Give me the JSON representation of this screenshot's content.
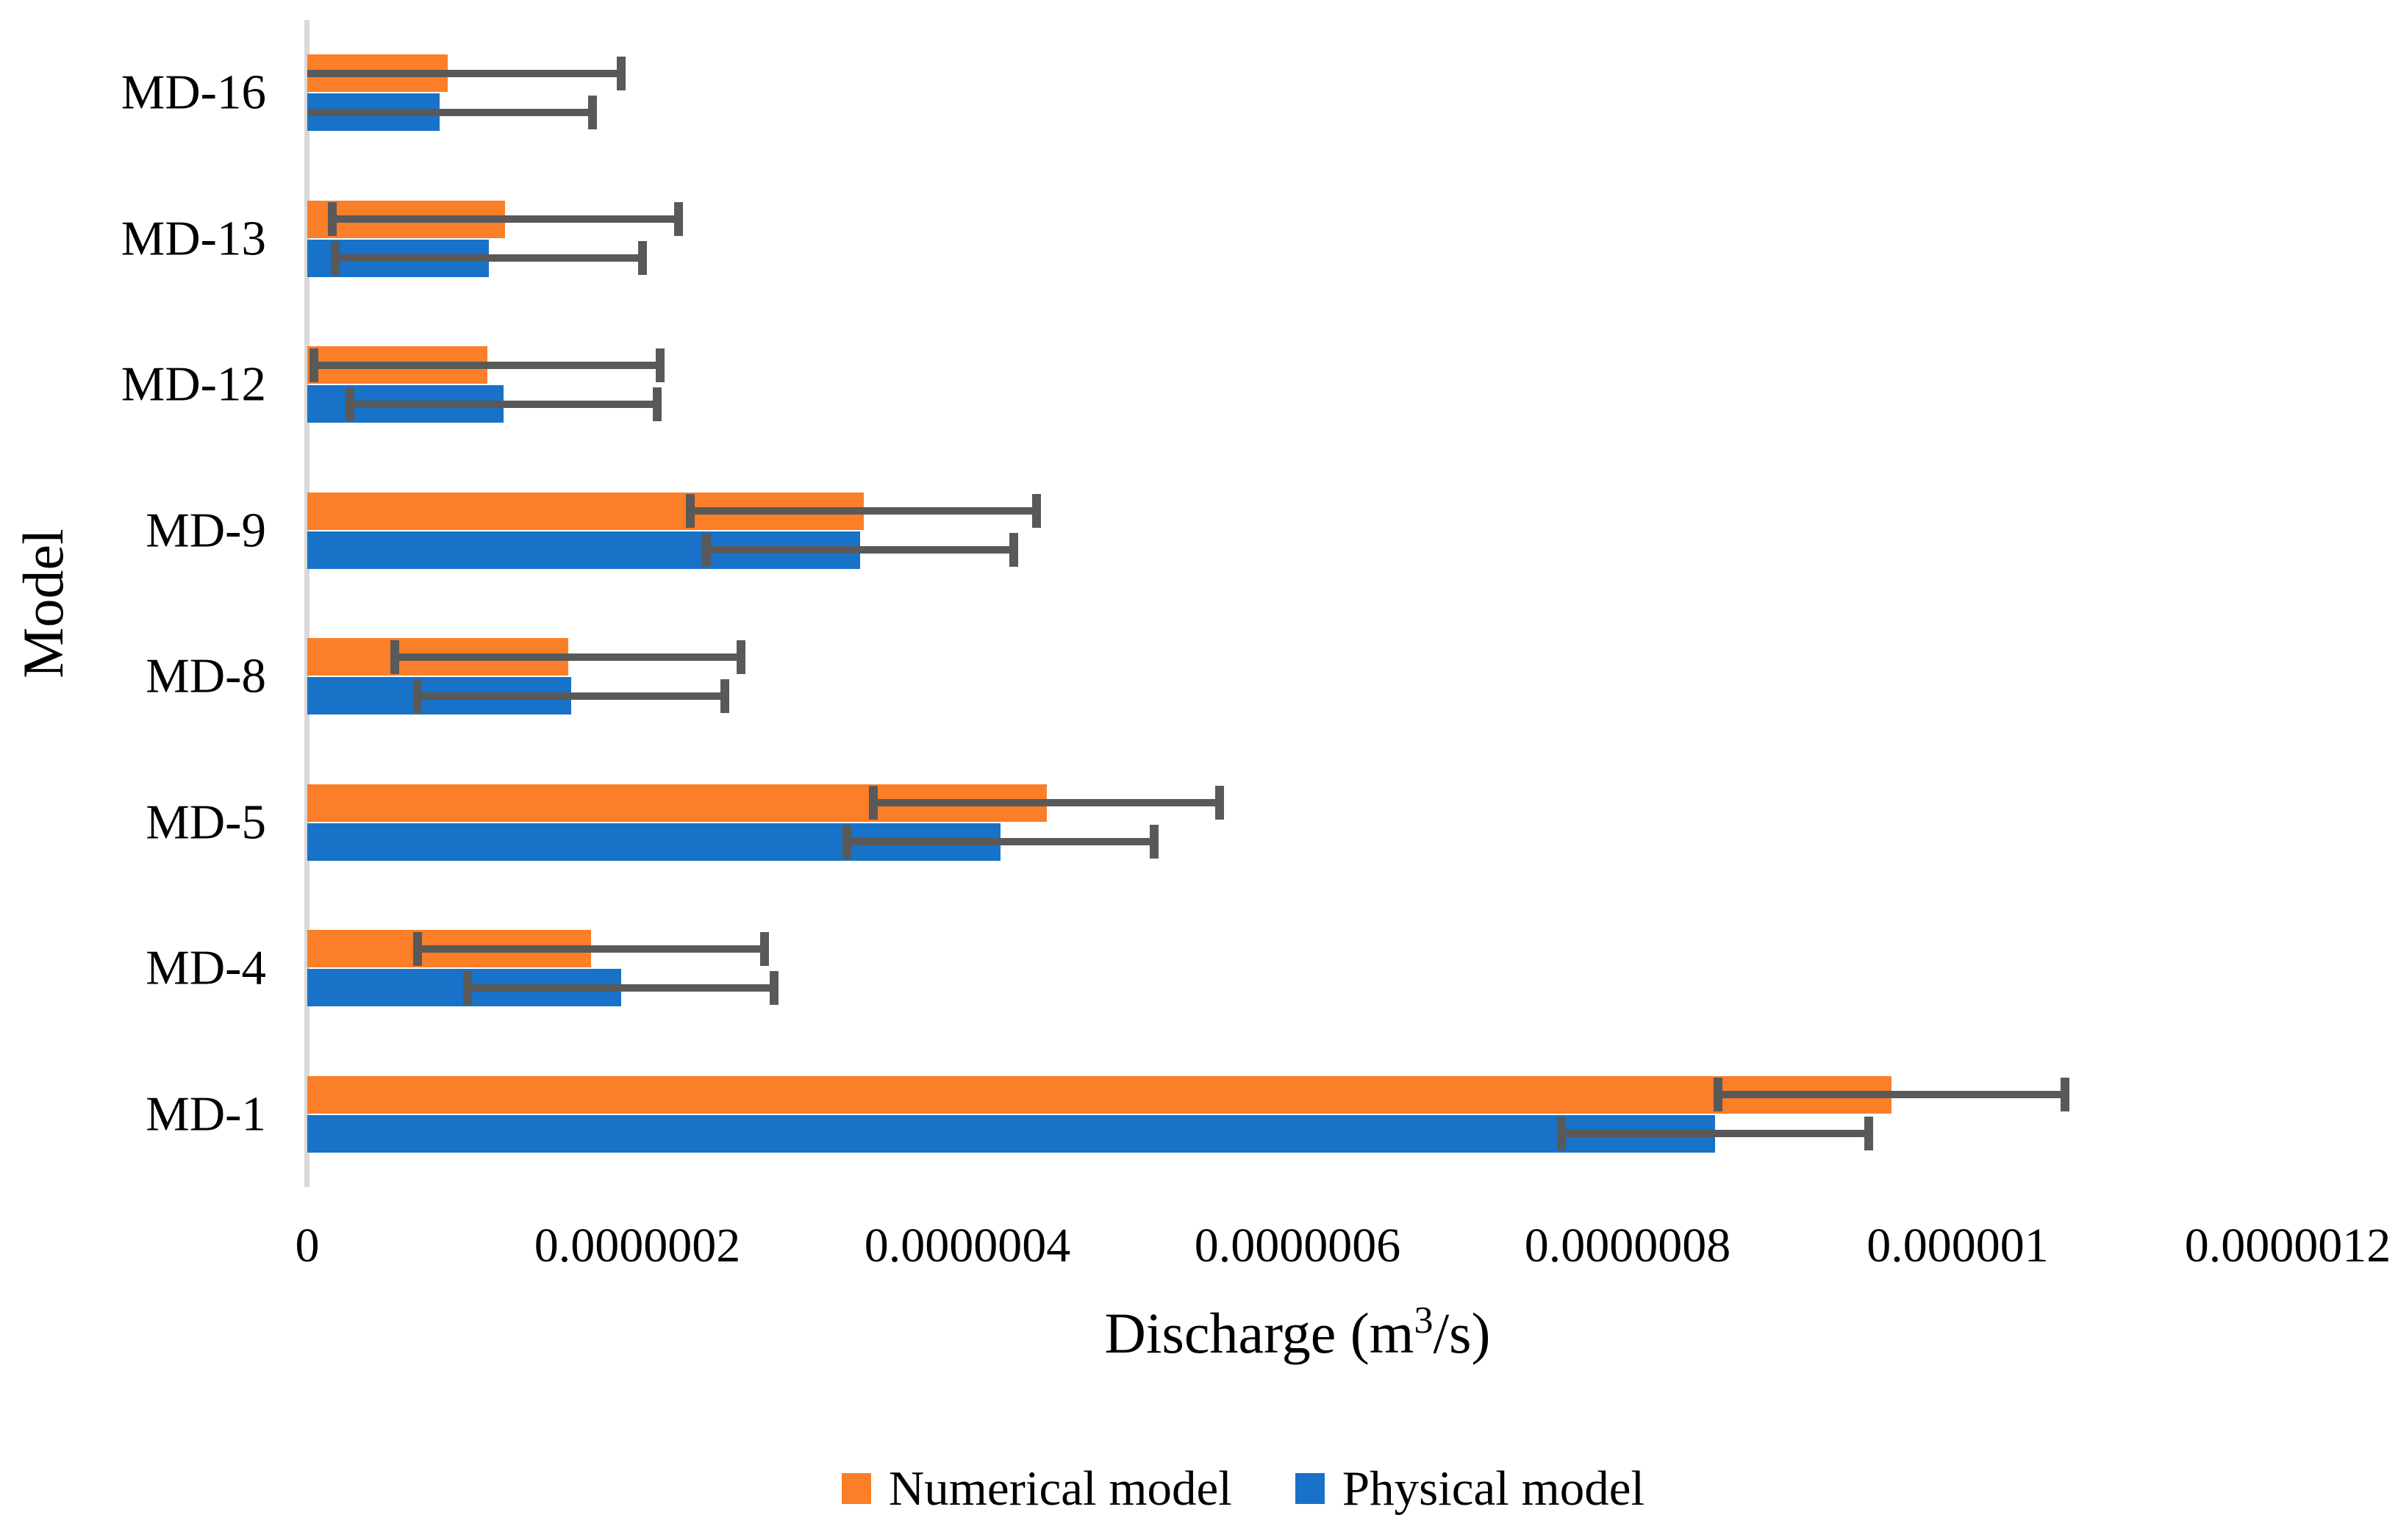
{
  "chart_data": {
    "type": "bar",
    "orientation": "horizontal",
    "xlabel": "Discharge (m³/s)",
    "xlabel_parts": {
      "pre": "Discharge (m",
      "sup": "3",
      "post": "/s)"
    },
    "ylabel": "Model",
    "categories_top_to_bottom": [
      "MD-16",
      "MD-13",
      "MD-12",
      "MD-9",
      "MD-8",
      "MD-5",
      "MD-4",
      "MD-1"
    ],
    "series": [
      {
        "name": "Numerical model",
        "color": "#FB7E28",
        "values": [
          8.5e-08,
          1.2e-07,
          1.09e-07,
          3.37e-07,
          1.58e-07,
          4.48e-07,
          1.72e-07,
          9.6e-07
        ],
        "error": 1.05e-07
      },
      {
        "name": "Physical model",
        "color": "#1772C8",
        "values": [
          8e-08,
          1.1e-07,
          1.19e-07,
          3.35e-07,
          1.6e-07,
          4.2e-07,
          1.9e-07,
          8.53e-07
        ],
        "error": 9.3e-08
      }
    ],
    "x_ticks": [
      0,
      2e-07,
      4e-07,
      6e-07,
      8e-07,
      1e-06,
      1.2e-06
    ],
    "x_tick_labels": [
      "0",
      "0.0000002",
      "0.0000004",
      "0.0000006",
      "0.0000008",
      "0.000001",
      "0.0000012"
    ],
    "xlim": [
      0,
      1.2e-06
    ],
    "grid": false,
    "legend_position": "bottom",
    "error_bar_color": "#595959",
    "axis_line_color": "#D9D9D9",
    "background_color": "#FFFFFF"
  }
}
